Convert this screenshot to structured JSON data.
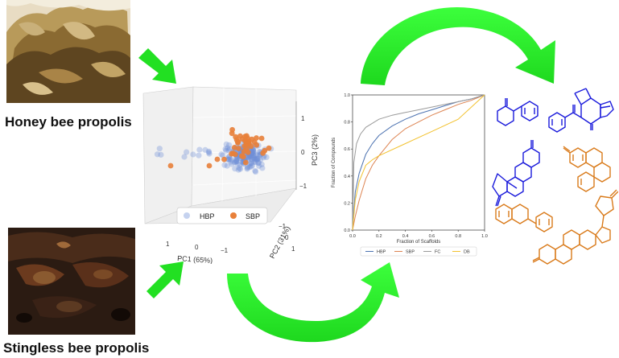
{
  "captions": {
    "honey": "Honey bee propolis",
    "stingless": "Stingless bee propolis"
  },
  "pca": {
    "axis_x_label": "PC1 (65%)",
    "axis_y_label": "PC2 (31%)",
    "axis_z_label": "PC3 (2%)",
    "x_ticks": [
      "1",
      "0",
      "−1"
    ],
    "y_ticks": [
      "−1",
      "0",
      "1"
    ],
    "z_ticks": [
      "1",
      "0",
      "−1"
    ],
    "legend": [
      {
        "name": "HBP",
        "color": "#6f8fd6"
      },
      {
        "name": "SBP",
        "color": "#e8803a"
      }
    ]
  },
  "chart_data": {
    "type": "line",
    "xlabel": "Fraction of Scaffolds",
    "ylabel": "Fraction of Compounds",
    "xlim": [
      0,
      1
    ],
    "ylim": [
      0,
      1
    ],
    "x_ticks": [
      "0.0",
      "0.2",
      "0.4",
      "0.6",
      "0.8",
      "1.0"
    ],
    "y_ticks": [
      "0.0",
      "0.2",
      "0.4",
      "0.6",
      "0.8",
      "1.0"
    ],
    "legend_placement": "bottom",
    "series": [
      {
        "name": "HBP",
        "color": "#4c72b0",
        "points": [
          [
            0,
            0
          ],
          [
            0.02,
            0.28
          ],
          [
            0.05,
            0.42
          ],
          [
            0.1,
            0.56
          ],
          [
            0.15,
            0.64
          ],
          [
            0.2,
            0.7
          ],
          [
            0.3,
            0.77
          ],
          [
            0.4,
            0.82
          ],
          [
            0.5,
            0.86
          ],
          [
            0.6,
            0.89
          ],
          [
            0.7,
            0.92
          ],
          [
            0.8,
            0.95
          ],
          [
            0.9,
            0.97
          ],
          [
            1,
            1
          ]
        ]
      },
      {
        "name": "SBP",
        "color": "#dd8452",
        "points": [
          [
            0,
            0
          ],
          [
            0.02,
            0.1
          ],
          [
            0.05,
            0.22
          ],
          [
            0.1,
            0.38
          ],
          [
            0.15,
            0.48
          ],
          [
            0.2,
            0.55
          ],
          [
            0.3,
            0.67
          ],
          [
            0.4,
            0.75
          ],
          [
            0.5,
            0.8
          ],
          [
            0.6,
            0.85
          ],
          [
            0.7,
            0.89
          ],
          [
            0.8,
            0.93
          ],
          [
            0.9,
            0.96
          ],
          [
            1,
            1
          ]
        ]
      },
      {
        "name": "FC",
        "color": "#9a9a9a",
        "points": [
          [
            0,
            0
          ],
          [
            0.01,
            0.5
          ],
          [
            0.03,
            0.64
          ],
          [
            0.06,
            0.71
          ],
          [
            0.1,
            0.76
          ],
          [
            0.2,
            0.82
          ],
          [
            0.3,
            0.85
          ],
          [
            0.4,
            0.87
          ],
          [
            0.5,
            0.89
          ],
          [
            0.6,
            0.91
          ],
          [
            0.7,
            0.93
          ],
          [
            0.8,
            0.95
          ],
          [
            0.9,
            0.97
          ],
          [
            1,
            1
          ]
        ]
      },
      {
        "name": "DB",
        "color": "#f2c12e",
        "points": [
          [
            0,
            0
          ],
          [
            0.02,
            0.22
          ],
          [
            0.05,
            0.36
          ],
          [
            0.1,
            0.48
          ],
          [
            0.15,
            0.52
          ],
          [
            0.2,
            0.55
          ],
          [
            0.4,
            0.64
          ],
          [
            0.6,
            0.73
          ],
          [
            0.8,
            0.82
          ],
          [
            1,
            1
          ]
        ]
      }
    ]
  },
  "scaffolds": {
    "blue_color": "#1a1adb",
    "orange_color": "#d97a1a"
  }
}
